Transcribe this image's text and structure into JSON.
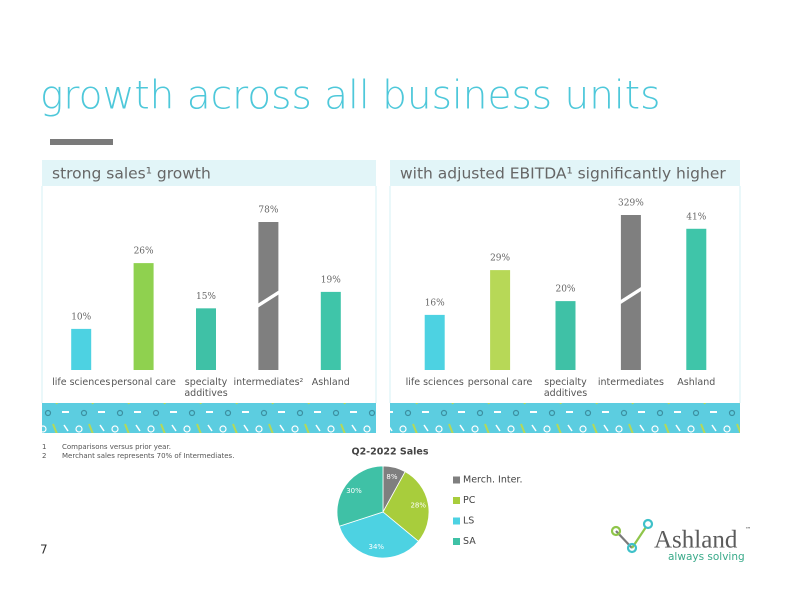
{
  "title": "growth across all business units",
  "page_number": "7",
  "footnotes": [
    {
      "number": "1",
      "text": "Comparisons versus prior year."
    },
    {
      "number": "2",
      "text": "Merchant sales represents 70% of Intermediates."
    }
  ],
  "logo": {
    "name": "Ashland",
    "trademark": "™",
    "tagline": "always solving"
  },
  "chart_data": [
    {
      "type": "bar",
      "title": "strong sales¹ growth",
      "categories": [
        "life sciences",
        "personal care",
        "specialty additives",
        "intermediates²",
        "Ashland"
      ],
      "values": [
        10,
        26,
        15,
        78,
        19
      ],
      "value_labels": [
        "10%",
        "26%",
        "15%",
        "78%",
        "19%"
      ],
      "colors": [
        "#4dd2e2",
        "#8fd14f",
        "#3fc1a6",
        "#7f7f7f",
        "#3fc5a9"
      ],
      "ylim": [
        0,
        36
      ],
      "axis_break": true
    },
    {
      "type": "bar",
      "title": "with adjusted EBITDA¹ significantly higher",
      "categories": [
        "life sciences",
        "personal care",
        "specialty additives",
        "intermediates",
        "Ashland"
      ],
      "values": [
        16,
        29,
        20,
        329,
        41
      ],
      "value_labels": [
        "16%",
        "29%",
        "20%",
        "329%",
        "41%"
      ],
      "colors": [
        "#4dd2e2",
        "#b7d857",
        "#3fc1a6",
        "#7f7f7f",
        "#3fc5a9"
      ],
      "ylim": [
        0,
        45
      ],
      "axis_break": true
    },
    {
      "type": "pie",
      "title": "Q2-2022 Sales",
      "categories": [
        "Merch. Inter.",
        "PC",
        "LS",
        "SA"
      ],
      "values": [
        8,
        28,
        34,
        30
      ],
      "value_labels": [
        "8%",
        "28%",
        "34%",
        "30%"
      ],
      "colors": [
        "#7f7f7f",
        "#a8cd3c",
        "#4dd2e2",
        "#3fc1a6"
      ],
      "legend": "right"
    }
  ]
}
